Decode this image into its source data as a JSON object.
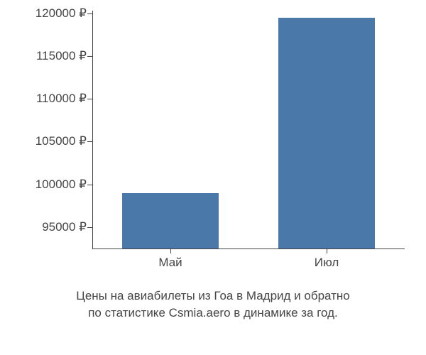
{
  "chart": {
    "type": "bar",
    "background_color": "#ffffff",
    "text_color": "#454545",
    "font_size": 17,
    "font_family": "Arial, Helvetica, sans-serif",
    "y_axis": {
      "min": 92500,
      "max": 120300,
      "ticks": [
        95000,
        100000,
        105000,
        110000,
        115000,
        120000
      ],
      "suffix": " ₽"
    },
    "x_axis": {
      "categories": [
        "Май",
        "Июл"
      ]
    },
    "series": {
      "values": [
        99000,
        119500
      ],
      "bar_color": "#4a78a8",
      "bar_width": 0.62
    },
    "axis_line_color": "#454545",
    "caption_line1": "Цены на авиабилеты из Гоа в Мадрид и обратно",
    "caption_line2": "по статистике Csmia.aero в динамике за год."
  },
  "tick_labels": {
    "y0": "95000 ₽",
    "y1": "100000 ₽",
    "y2": "105000 ₽",
    "y3": "110000 ₽",
    "y4": "115000 ₽",
    "y5": "120000 ₽",
    "x0": "Май",
    "x1": "Июл"
  }
}
